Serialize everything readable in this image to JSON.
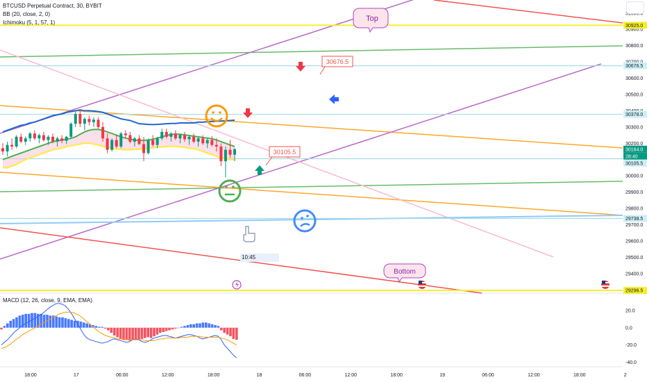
{
  "legend": {
    "symbol": "BTCUSD Perpetual Contract, 30, BYBIT",
    "bb": "BB (20, close, 2, 0)",
    "ichimoku": "Ichimoku (5, 1, 57, 1)",
    "macd": "MACD (12, 26, close, 9, EMA, EMA)"
  },
  "chart_data": [
    {
      "type": "candlestick",
      "title": "",
      "price_axis": {
        "ticks": [
          29400,
          29500,
          29600,
          29700,
          29800,
          29900,
          30000,
          30100,
          30200,
          30300,
          30400,
          30500,
          30600,
          30700,
          30800,
          30900,
          31000
        ],
        "tick_labels": [
          "29400.0",
          "29500.0",
          "29600.0",
          "29700.0",
          "29800.0",
          "29900.0",
          "30000.0",
          "30100.0",
          "30200.0",
          "30300.0",
          "30400.0",
          "30500.0",
          "30600.0",
          "30700.0",
          "30800.0",
          "30900.0",
          "31000.0"
        ],
        "ylim": [
          29280,
          31080
        ],
        "badges": [
          {
            "label": "30925.0",
            "value": 30925,
            "color": "#f5ef2a"
          },
          {
            "label": "30676.5",
            "value": 30676.5,
            "color": "#cdeff5"
          },
          {
            "label": "30378.0",
            "value": 30378,
            "color": "#cdeff5"
          },
          {
            "label": "30164.0",
            "value": 30164,
            "color": "#089981"
          },
          {
            "label": "28:40",
            "value": 30144,
            "color": "#089981"
          },
          {
            "label": "30105.5",
            "value": 30105.5,
            "color": "#cdeff5"
          },
          {
            "label": "29738.5",
            "value": 29738.5,
            "color": "#cdeff5"
          },
          {
            "label": "29296.5",
            "value": 29296.5,
            "color": "#f5ef2a"
          }
        ]
      },
      "time_axis": [
        "18:00",
        "17",
        "06:00",
        "12:00",
        "18:00",
        "18",
        "06:00",
        "12:00",
        "18:00",
        "19",
        "06:00",
        "12:00",
        "18:00",
        "2"
      ],
      "candles": [
        {
          "o": 30170,
          "h": 30200,
          "l": 30130,
          "c": 30150
        },
        {
          "o": 30150,
          "h": 30210,
          "l": 30120,
          "c": 30190
        },
        {
          "o": 30190,
          "h": 30230,
          "l": 30160,
          "c": 30180
        },
        {
          "o": 30180,
          "h": 30250,
          "l": 30170,
          "c": 30240
        },
        {
          "o": 30240,
          "h": 30260,
          "l": 30200,
          "c": 30210
        },
        {
          "o": 30210,
          "h": 30240,
          "l": 30190,
          "c": 30230
        },
        {
          "o": 30230,
          "h": 30270,
          "l": 30210,
          "c": 30260
        },
        {
          "o": 30260,
          "h": 30280,
          "l": 30220,
          "c": 30230
        },
        {
          "o": 30230,
          "h": 30260,
          "l": 30200,
          "c": 30250
        },
        {
          "o": 30250,
          "h": 30270,
          "l": 30210,
          "c": 30220
        },
        {
          "o": 30220,
          "h": 30250,
          "l": 30190,
          "c": 30240
        },
        {
          "o": 30240,
          "h": 30260,
          "l": 30200,
          "c": 30210
        },
        {
          "o": 30210,
          "h": 30240,
          "l": 30180,
          "c": 30230
        },
        {
          "o": 30230,
          "h": 30250,
          "l": 30200,
          "c": 30215
        },
        {
          "o": 30215,
          "h": 30245,
          "l": 30195,
          "c": 30240
        },
        {
          "o": 30240,
          "h": 30330,
          "l": 30230,
          "c": 30320
        },
        {
          "o": 30320,
          "h": 30400,
          "l": 30300,
          "c": 30380
        },
        {
          "o": 30380,
          "h": 30400,
          "l": 30300,
          "c": 30320
        },
        {
          "o": 30320,
          "h": 30360,
          "l": 30280,
          "c": 30350
        },
        {
          "o": 30350,
          "h": 30370,
          "l": 30310,
          "c": 30330
        },
        {
          "o": 30330,
          "h": 30360,
          "l": 30300,
          "c": 30345
        },
        {
          "o": 30345,
          "h": 30360,
          "l": 30290,
          "c": 30300
        },
        {
          "o": 30300,
          "h": 30330,
          "l": 30210,
          "c": 30230
        },
        {
          "o": 30230,
          "h": 30260,
          "l": 30140,
          "c": 30160
        },
        {
          "o": 30160,
          "h": 30230,
          "l": 30150,
          "c": 30220
        },
        {
          "o": 30220,
          "h": 30250,
          "l": 30170,
          "c": 30180
        },
        {
          "o": 30180,
          "h": 30270,
          "l": 30170,
          "c": 30260
        },
        {
          "o": 30260,
          "h": 30280,
          "l": 30230,
          "c": 30250
        },
        {
          "o": 30250,
          "h": 30270,
          "l": 30200,
          "c": 30210
        },
        {
          "o": 30210,
          "h": 30240,
          "l": 30180,
          "c": 30230
        },
        {
          "o": 30230,
          "h": 30250,
          "l": 30190,
          "c": 30195
        },
        {
          "o": 30195,
          "h": 30240,
          "l": 30090,
          "c": 30140
        },
        {
          "o": 30140,
          "h": 30230,
          "l": 30130,
          "c": 30220
        },
        {
          "o": 30220,
          "h": 30250,
          "l": 30180,
          "c": 30190
        },
        {
          "o": 30190,
          "h": 30240,
          "l": 30170,
          "c": 30230
        },
        {
          "o": 30230,
          "h": 30290,
          "l": 30220,
          "c": 30270
        },
        {
          "o": 30270,
          "h": 30290,
          "l": 30230,
          "c": 30240
        },
        {
          "o": 30240,
          "h": 30270,
          "l": 30210,
          "c": 30260
        },
        {
          "o": 30260,
          "h": 30280,
          "l": 30220,
          "c": 30230
        },
        {
          "o": 30230,
          "h": 30260,
          "l": 30200,
          "c": 30250
        },
        {
          "o": 30250,
          "h": 30270,
          "l": 30210,
          "c": 30225
        },
        {
          "o": 30225,
          "h": 30250,
          "l": 30190,
          "c": 30240
        },
        {
          "o": 30240,
          "h": 30260,
          "l": 30200,
          "c": 30210
        },
        {
          "o": 30210,
          "h": 30240,
          "l": 30180,
          "c": 30230
        },
        {
          "o": 30230,
          "h": 30250,
          "l": 30190,
          "c": 30200
        },
        {
          "o": 30200,
          "h": 30230,
          "l": 30170,
          "c": 30220
        },
        {
          "o": 30220,
          "h": 30245,
          "l": 30180,
          "c": 30190
        },
        {
          "o": 30190,
          "h": 30230,
          "l": 30150,
          "c": 30180
        },
        {
          "o": 30180,
          "h": 30200,
          "l": 30060,
          "c": 30090
        },
        {
          "o": 30090,
          "h": 30180,
          "l": 29990,
          "c": 30160
        },
        {
          "o": 30160,
          "h": 30220,
          "l": 30110,
          "c": 30130
        },
        {
          "o": 30130,
          "h": 30170,
          "l": 30090,
          "c": 30164
        }
      ],
      "bollinger": {
        "upper": [
          30270,
          30280,
          30290,
          30300,
          30310,
          30315,
          30325,
          30330,
          30340,
          30350,
          30360,
          30370,
          30375,
          30380,
          30390,
          30395,
          30400,
          30405,
          30400,
          30400,
          30398,
          30395,
          30390,
          30380,
          30370,
          30360,
          30350,
          30345,
          30340,
          30330,
          30320,
          30318,
          30316,
          30315,
          30316,
          30318,
          30320,
          30322,
          30322,
          30325,
          30325,
          30325,
          30325,
          30330,
          30330,
          30332,
          30334,
          30335,
          30336,
          30338,
          30340,
          30342
        ],
        "basis": [
          30150,
          30155,
          30160,
          30170,
          30178,
          30185,
          30195,
          30205,
          30215,
          30225,
          30235,
          30243,
          30250,
          30256,
          30260,
          30265,
          30270,
          30275,
          30278,
          30278,
          30276,
          30272,
          30268,
          30262,
          30255,
          30248,
          30242,
          30236,
          30230,
          30225,
          30222,
          30222,
          30224,
          30228,
          30232,
          30236,
          30240,
          30245,
          30248,
          30248,
          30246,
          30244,
          30240,
          30235,
          30228,
          30220,
          30215,
          30210,
          30205,
          30200,
          30196,
          30192
        ],
        "lower": [
          30030,
          30030,
          30030,
          30040,
          30046,
          30055,
          30065,
          30080,
          30090,
          30100,
          30110,
          30116,
          30125,
          30132,
          30130,
          30135,
          30140,
          30145,
          30156,
          30156,
          30154,
          30149,
          30146,
          30144,
          30140,
          30136,
          30134,
          30127,
          30120,
          30120,
          30124,
          30126,
          30132,
          30141,
          30148,
          30154,
          30160,
          30168,
          30174,
          30171,
          30167,
          30163,
          30155,
          30140,
          30126,
          30108,
          30096,
          30085,
          30074,
          30062,
          30052,
          30042
        ]
      },
      "ichimoku": {
        "base": [
          30100,
          30110,
          30120,
          30130,
          30140,
          30150,
          30160,
          30170,
          30180,
          30190,
          30200,
          30210,
          30215,
          30220,
          30225,
          30230,
          30240,
          30255,
          30270,
          30280,
          30285,
          30285,
          30280,
          30270,
          30260,
          30250,
          30240,
          30232,
          30225,
          30220,
          30218,
          30218,
          30220,
          30225,
          30232,
          30240,
          30248,
          30254,
          30256,
          30255,
          30252,
          30248,
          30244,
          30240,
          30236,
          30232,
          30228,
          30220,
          30210,
          30200,
          30190,
          30180
        ],
        "lagging": [
          30050,
          30050,
          30060,
          30070,
          30085,
          30100,
          30110,
          30120,
          30130,
          30140,
          30150,
          30160,
          30165,
          30170,
          30180,
          30185,
          30190,
          30195,
          30200,
          30200,
          30195,
          30190,
          30180,
          30175,
          30170,
          30165,
          30162,
          30160,
          30160,
          30162,
          30164,
          30165,
          30170,
          30172,
          30176,
          30178,
          30180,
          30182,
          30180,
          30178,
          30175,
          30170,
          30165,
          30160,
          30150,
          30140,
          30130,
          30120,
          30110,
          30105,
          30100,
          30100
        ]
      },
      "horizontal_lines": [
        {
          "value": 30925,
          "color": "#f5ef2a"
        },
        {
          "value": 29296.5,
          "color": "#f5ef2a"
        },
        {
          "value": 30676.5,
          "color": "#a9dbe6"
        },
        {
          "value": 30378,
          "color": "#a9dbe6"
        },
        {
          "value": 30105.5,
          "color": "#a9dbe6"
        },
        {
          "value": 29738.5,
          "color": "#a9dbe6"
        }
      ],
      "annotations": [
        "Top",
        "Bottom",
        "30676.5",
        "30105.5",
        "10:45"
      ]
    },
    {
      "type": "macd",
      "title": "",
      "y_ticks": [
        20.0,
        0.0,
        -20.0,
        -40.0
      ],
      "y_tick_labels": [
        "20.0",
        "0.0",
        "-20.0",
        "-40.0"
      ],
      "ylim": [
        -42,
        32
      ],
      "histogram": [
        -2,
        2,
        5,
        8,
        10,
        12,
        14,
        15,
        16,
        16,
        17,
        17,
        16,
        16,
        15,
        15,
        14,
        14,
        13,
        12,
        12,
        11,
        10,
        9,
        8,
        8,
        7,
        6,
        5,
        4,
        3,
        2,
        1,
        1,
        -1,
        -3,
        -6,
        -9,
        -11,
        -13,
        -14,
        -14,
        -15,
        -14,
        -13,
        -14,
        -13,
        -12,
        -11,
        -12,
        -10,
        -8,
        -6,
        -5,
        -4,
        -3,
        -2,
        -1,
        0,
        1,
        2,
        3,
        4,
        4,
        5,
        5,
        6,
        6,
        5,
        4,
        3,
        2,
        -3,
        -6,
        -8,
        -10,
        -13,
        -14
      ],
      "macd_line": [
        -20,
        -17,
        -14,
        -10,
        -6,
        -3,
        0,
        3,
        5,
        7,
        9,
        11,
        13,
        15,
        18,
        21,
        24,
        26,
        28,
        28,
        27,
        25,
        21,
        16,
        10,
        4,
        -2,
        -8,
        -12,
        -14,
        -15,
        -16,
        -17,
        -18,
        -17,
        -16,
        -14,
        -13,
        -14,
        -15,
        -16,
        -17,
        -16,
        -14,
        -13,
        -14,
        -16,
        -17,
        -16,
        -14,
        -12,
        -11,
        -10,
        -9,
        -9,
        -10,
        -11,
        -12,
        -11,
        -10,
        -9,
        -8,
        -8,
        -9,
        -10,
        -12,
        -13,
        -12,
        -11,
        -10,
        -9,
        -10,
        -14,
        -20,
        -24,
        -28,
        -32,
        -35
      ],
      "signal_line": [
        -24,
        -23,
        -21,
        -19,
        -16,
        -13,
        -11,
        -8,
        -6,
        -4,
        -2,
        0,
        2,
        4,
        6,
        8,
        10,
        12,
        14,
        16,
        17,
        18,
        18,
        18,
        17,
        15,
        13,
        10,
        7,
        4,
        1,
        -2,
        -5,
        -7,
        -9,
        -10,
        -11,
        -12,
        -13,
        -13,
        -14,
        -14,
        -14,
        -14,
        -14,
        -14,
        -14,
        -15,
        -15,
        -15,
        -15,
        -14,
        -13,
        -13,
        -12,
        -12,
        -12,
        -12,
        -12,
        -11,
        -11,
        -11,
        -10,
        -10,
        -10,
        -10,
        -11,
        -11,
        -11,
        -11,
        -11,
        -11,
        -12,
        -13,
        -14,
        -16,
        -18,
        -20
      ]
    }
  ]
}
